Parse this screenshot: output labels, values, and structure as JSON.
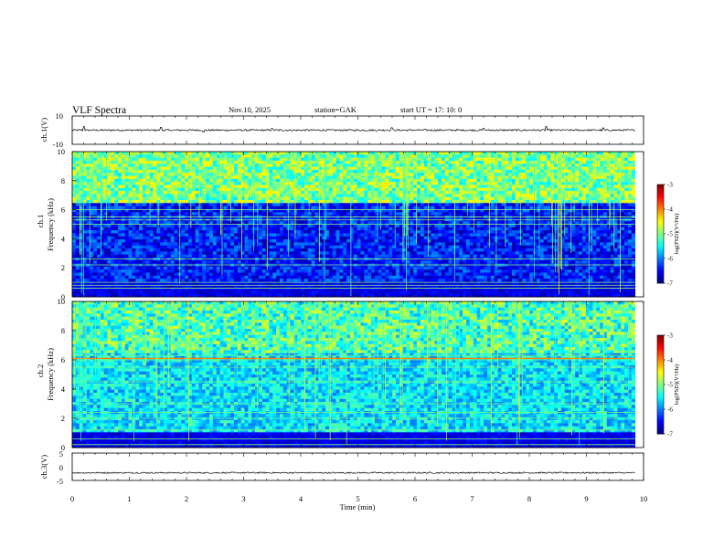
{
  "header": {
    "title": "VLF  Spectra",
    "date": "Nov.10, 2025",
    "station": "station=GAK",
    "start": "start  UT  =   17: 10: 0"
  },
  "chart_data": [
    {
      "type": "line",
      "panel": "ch1-waveform",
      "ylabel": "ch.1(V)",
      "ylim": [
        -10,
        10
      ],
      "yticks": [
        "10",
        "-10"
      ],
      "xlim": [
        0,
        10
      ],
      "baseline": 0,
      "noise_amplitude": 0.6,
      "spikes": [
        [
          0.2,
          2.5
        ],
        [
          1.55,
          2.0
        ],
        [
          2.3,
          -1.4
        ],
        [
          3.5,
          1.2
        ],
        [
          5.6,
          1.8
        ],
        [
          7.2,
          1.4
        ],
        [
          8.3,
          2.6
        ],
        [
          9.3,
          1.6
        ]
      ]
    },
    {
      "type": "heatmap",
      "panel": "ch1-spectrogram",
      "ylabel": "ch.1\nFrequency (kHz)",
      "ylim": [
        0,
        10
      ],
      "yticks": [
        "0",
        "2",
        "4",
        "6",
        "8",
        "10"
      ],
      "xlim": [
        0,
        9.85
      ],
      "colorbar": {
        "label": "log(PSD)(V²/Hz)",
        "range": [
          -7,
          -3
        ],
        "ticks": [
          "-3",
          "-4",
          "-5",
          "-6",
          "-7"
        ]
      },
      "background_log_psd": -6.4,
      "upper_band_log_psd": -5.0,
      "band_lines_khz": [
        0.6,
        0.8,
        1.0,
        2.2,
        2.6,
        5.0,
        5.3,
        5.5,
        6.0
      ]
    },
    {
      "type": "heatmap",
      "panel": "ch2-spectrogram",
      "ylabel": "ch.2\nFrequency (kHz)",
      "ylim": [
        0,
        10
      ],
      "yticks": [
        "0",
        "2",
        "4",
        "6",
        "8",
        "10"
      ],
      "xlim": [
        0,
        9.85
      ],
      "colorbar": {
        "label": "log(PSD)(V²/Hz)",
        "range": [
          -7,
          -3
        ],
        "ticks": [
          "-3",
          "-4",
          "-5",
          "-6",
          "-7"
        ]
      },
      "background_log_psd": -5.6,
      "upper_band_log_psd": -5.2,
      "band_lines_khz": [
        0.2,
        0.6,
        1.2,
        2.0,
        2.4,
        3.0,
        4.5,
        5.5,
        6.0,
        6.3
      ]
    },
    {
      "type": "line",
      "panel": "ch3-waveform",
      "ylabel": "ch.3(V)",
      "ylim": [
        -5,
        5
      ],
      "yticks": [
        "5",
        "0",
        "-5"
      ],
      "xlim": [
        0,
        10
      ],
      "baseline": -2.2,
      "noise_amplitude": 0.25
    }
  ],
  "xaxis": {
    "label": "Time  (min)",
    "ticks": [
      "0",
      "1",
      "2",
      "3",
      "4",
      "5",
      "6",
      "7",
      "8",
      "9",
      "10"
    ]
  }
}
